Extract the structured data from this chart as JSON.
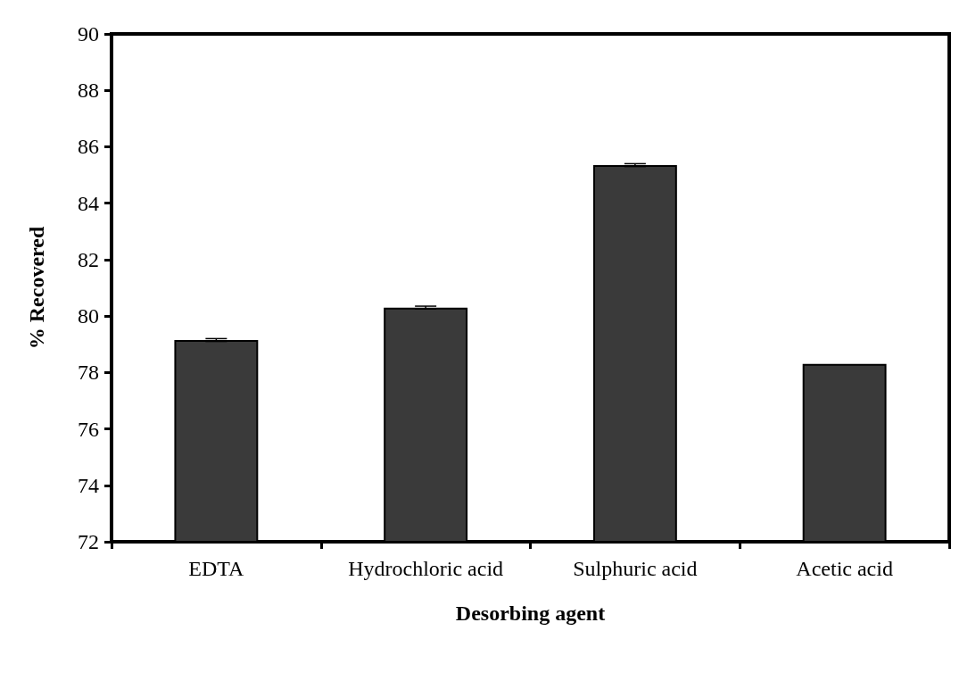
{
  "chart_data": {
    "type": "bar",
    "xlabel": "Desorbing agent",
    "ylabel": "% Recovered",
    "categories": [
      "EDTA",
      "Hydrochloric acid",
      "Sulphuric acid",
      "Acetic acid"
    ],
    "values": [
      79.15,
      80.3,
      85.35,
      78.3
    ],
    "errors": [
      0.05,
      0.05,
      0.05,
      null
    ],
    "color": "#3a3a3a",
    "ylim": [
      72,
      90
    ],
    "yticks": [
      72,
      74,
      76,
      78,
      80,
      82,
      84,
      86,
      88,
      90
    ],
    "grid": false
  }
}
